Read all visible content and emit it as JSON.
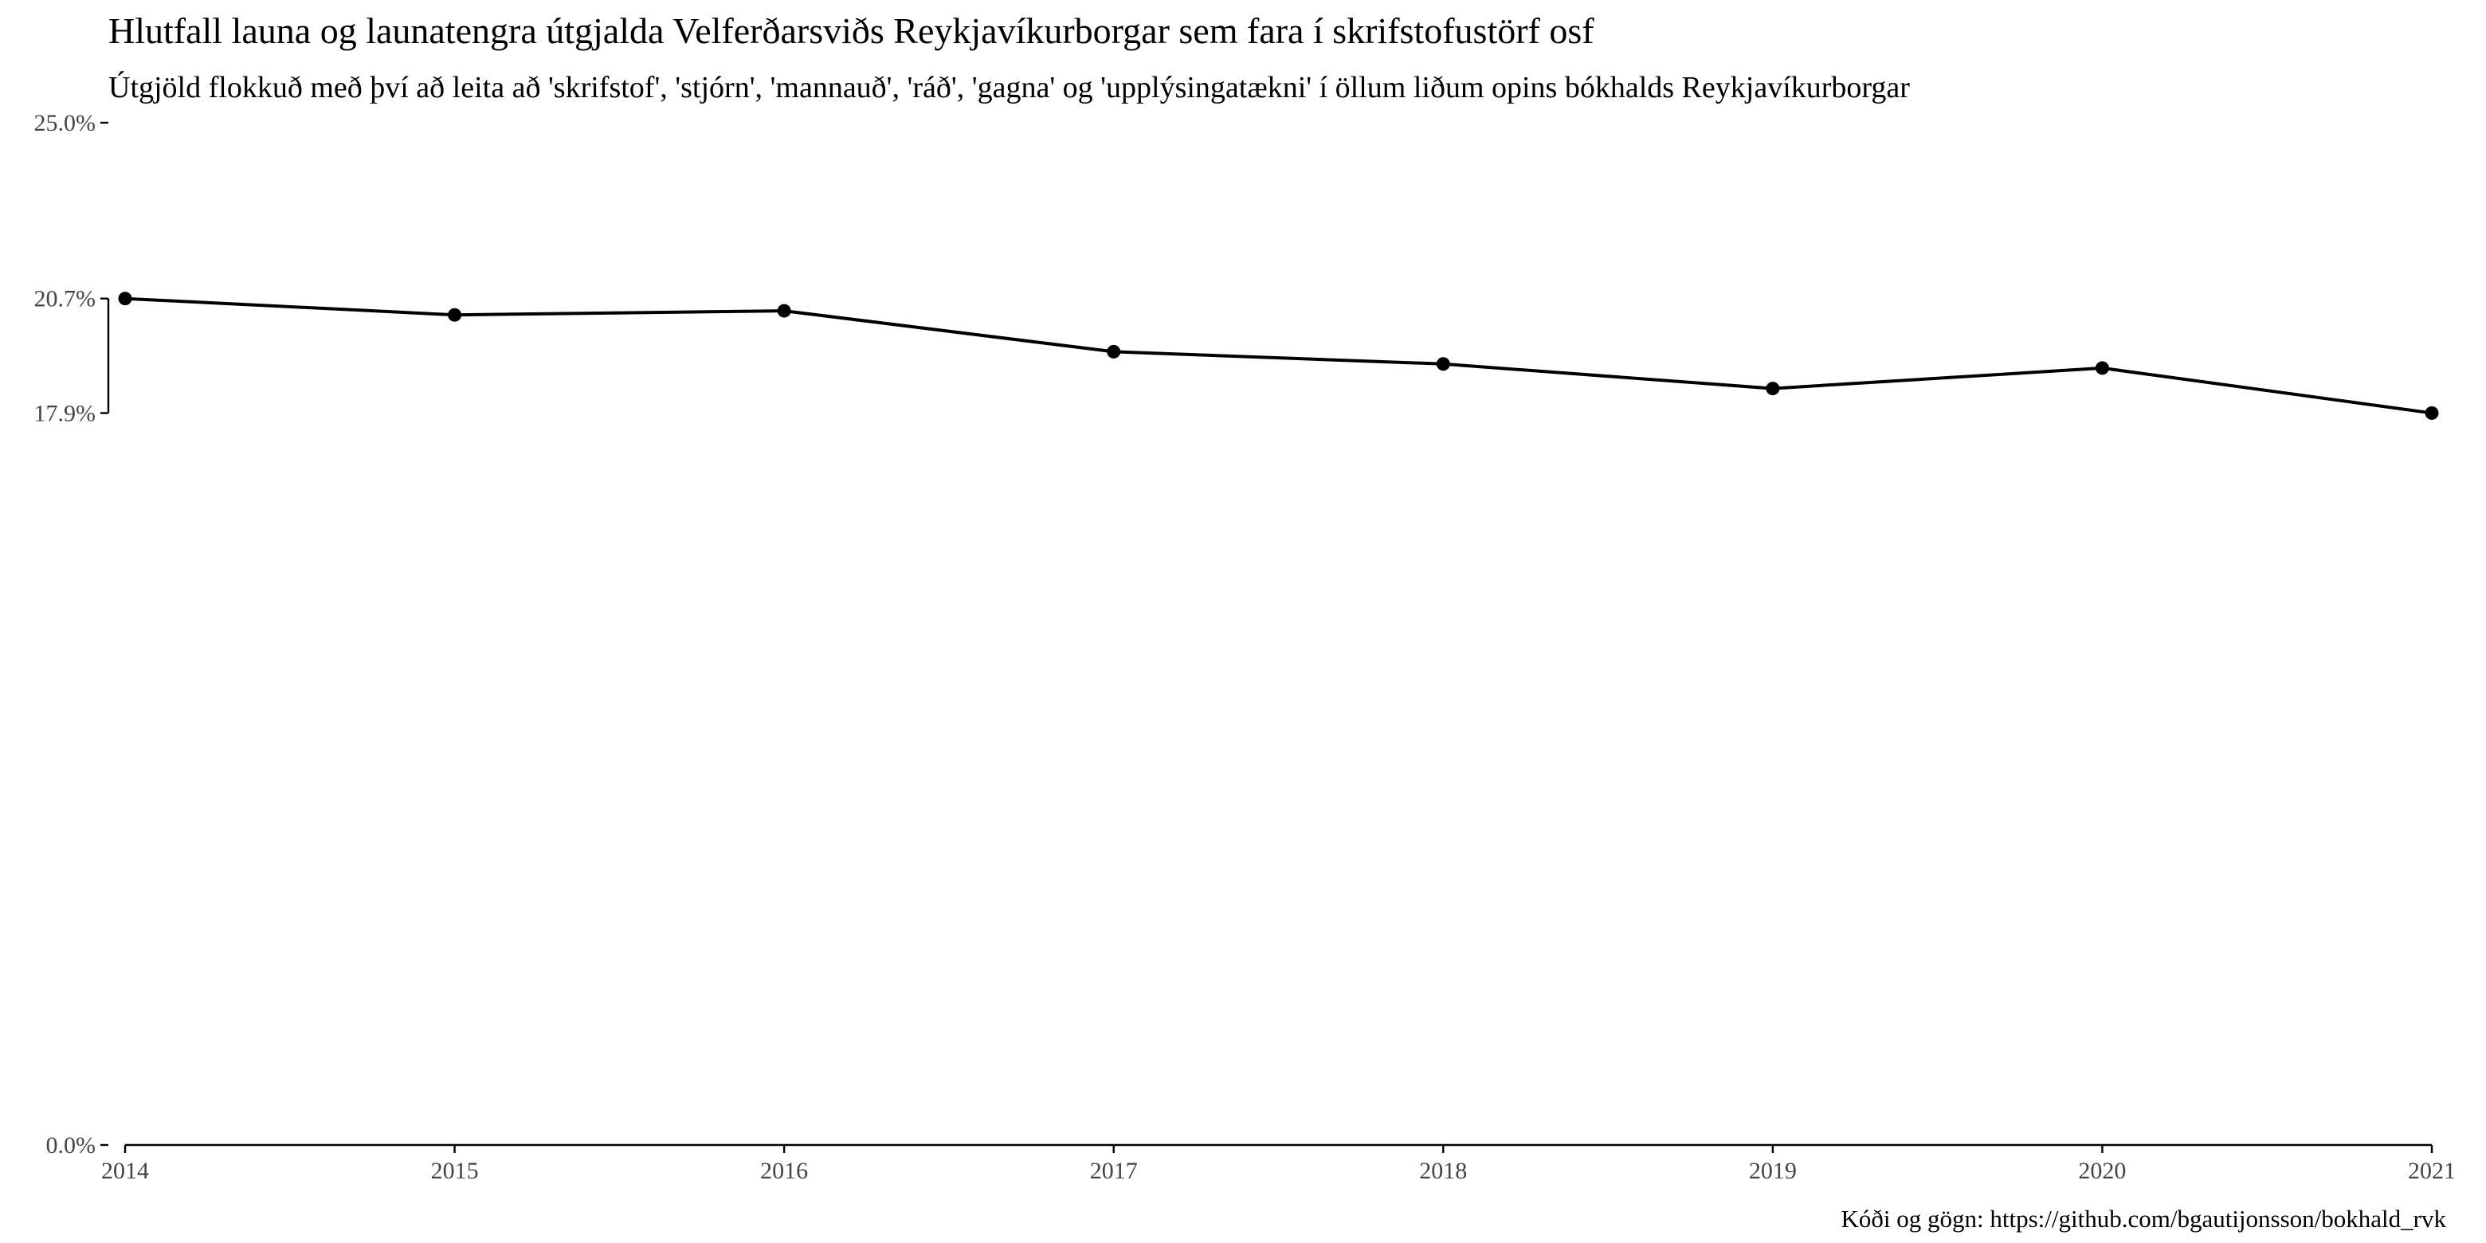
{
  "chart_data": {
    "type": "line",
    "title": "Hlutfall launa og launatengra útgjalda Velferðarsviðs Reykjavíkurborgar sem fara í skrifstofustörf osf",
    "subtitle": "Útgjöld flokkuð með því að leita að 'skrifstof', 'stjórn', 'mannauð', 'ráð', 'gagna' og 'upplýsingatækni' í öllum liðum opins bókhalds Reykjavíkurborgar",
    "caption": "Kóði og gögn: https://github.com/bgautijonsson/bokhald_rvk",
    "xlabel": "",
    "ylabel": "",
    "x": [
      2014,
      2015,
      2016,
      2017,
      2018,
      2019,
      2020,
      2021
    ],
    "x_tick_labels": [
      "2014",
      "2015",
      "2016",
      "2017",
      "2018",
      "2019",
      "2020",
      "2021"
    ],
    "series": [
      {
        "values": [
          20.7,
          20.3,
          20.4,
          19.4,
          19.1,
          18.5,
          19.0,
          17.9
        ]
      }
    ],
    "y_unit": "%",
    "ylim": [
      0,
      25
    ],
    "y_ticks": [
      0,
      17.9,
      20.7,
      25
    ],
    "y_tick_labels": [
      "0.0%",
      "17.9%",
      "20.7%",
      "25.0%"
    ],
    "grid": false,
    "legend": "none",
    "colors": {
      "line": "#000000",
      "points": "#000000",
      "axis": "#000000",
      "tick_text": "#444444",
      "background": "#ffffff"
    }
  }
}
